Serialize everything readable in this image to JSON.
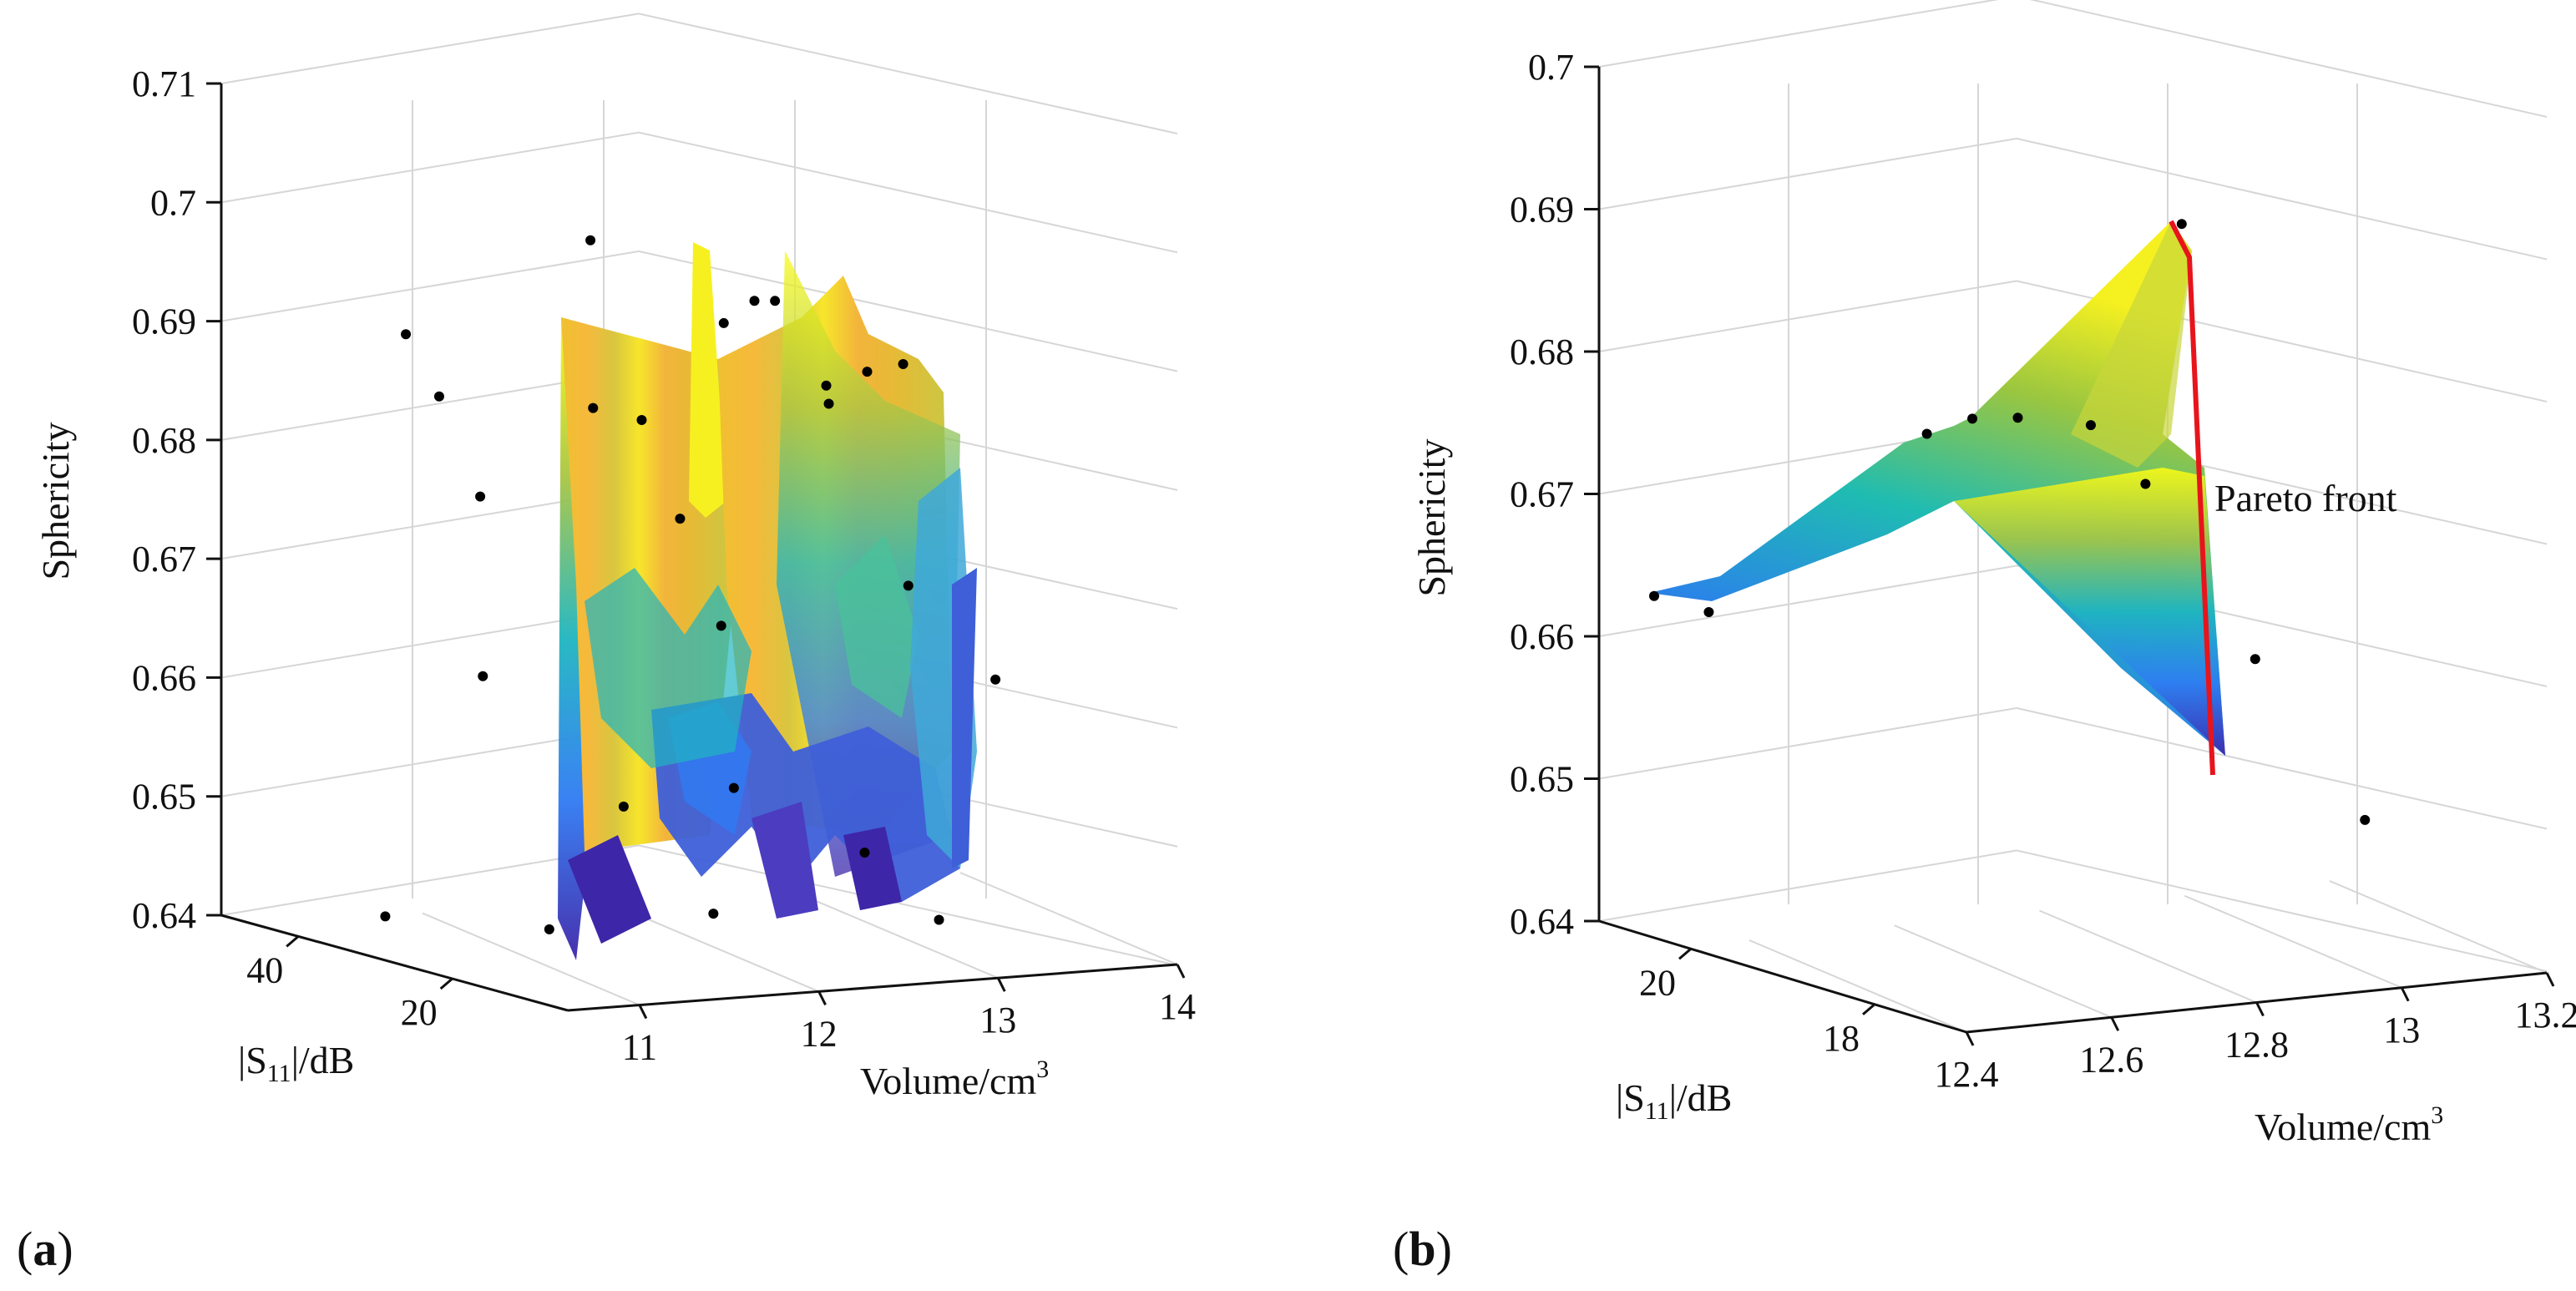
{
  "panels": {
    "a": {
      "label": "(a)",
      "label_letter": "a"
    },
    "b": {
      "label": "(b)",
      "label_letter": "b"
    }
  },
  "chart_data": [
    {
      "id": "a",
      "type": "surface3d-scatter",
      "title": "",
      "zlabel": "Sphericity",
      "xlabel": "Volume/cm³",
      "xlabel_main": "Volume/cm",
      "xlabel_sup": "3",
      "ylabel": "|S11|/dB",
      "ylabel_pre": "|S",
      "ylabel_sub": "11",
      "ylabel_post": "|/dB",
      "z_ticks": [
        "0.71",
        "0.7",
        "0.69",
        "0.68",
        "0.67",
        "0.66",
        "0.65",
        "0.64"
      ],
      "z_range": [
        0.64,
        0.71
      ],
      "x_ticks": [
        "11",
        "12",
        "13",
        "14"
      ],
      "x_range": [
        10.6,
        14
      ],
      "y_ticks": [
        "40",
        "20"
      ],
      "y_range": [
        5,
        50
      ],
      "grid": true,
      "points": [
        {
          "volume": 11.2,
          "s11": 40,
          "sphericity": 0.69
        },
        {
          "volume": 11.3,
          "s11": 38,
          "sphericity": 0.685
        },
        {
          "volume": 11.4,
          "s11": 35,
          "sphericity": 0.677
        },
        {
          "volume": 11.2,
          "s11": 30,
          "sphericity": 0.663
        },
        {
          "volume": 11.6,
          "s11": 25,
          "sphericity": 0.686
        },
        {
          "volume": 11.8,
          "s11": 30,
          "sphericity": 0.699
        },
        {
          "volume": 12.0,
          "s11": 28,
          "sphericity": 0.684
        },
        {
          "volume": 12.2,
          "s11": 22,
          "sphericity": 0.693
        },
        {
          "volume": 12.4,
          "s11": 20,
          "sphericity": 0.695
        },
        {
          "volume": 12.5,
          "s11": 25,
          "sphericity": 0.694
        },
        {
          "volume": 12.6,
          "s11": 18,
          "sphericity": 0.688
        },
        {
          "volume": 12.7,
          "s11": 20,
          "sphericity": 0.686
        },
        {
          "volume": 12.9,
          "s11": 15,
          "sphericity": 0.69
        },
        {
          "volume": 13.0,
          "s11": 22,
          "sphericity": 0.688
        },
        {
          "volume": 12.3,
          "s11": 30,
          "sphericity": 0.675
        },
        {
          "volume": 12.1,
          "s11": 20,
          "sphericity": 0.668
        },
        {
          "volume": 12.8,
          "s11": 12,
          "sphericity": 0.672
        },
        {
          "volume": 13.2,
          "s11": 10,
          "sphericity": 0.664
        },
        {
          "volume": 12.6,
          "s11": 30,
          "sphericity": 0.652
        },
        {
          "volume": 12.2,
          "s11": 35,
          "sphericity": 0.65
        },
        {
          "volume": 12.9,
          "s11": 20,
          "sphericity": 0.648
        },
        {
          "volume": 11.3,
          "s11": 45,
          "sphericity": 0.64
        },
        {
          "volume": 12.0,
          "s11": 40,
          "sphericity": 0.639
        },
        {
          "volume": 12.4,
          "s11": 28,
          "sphericity": 0.642
        },
        {
          "volume": 13.1,
          "s11": 15,
          "sphericity": 0.643
        }
      ]
    },
    {
      "id": "b",
      "type": "surface3d-scatter",
      "title": "",
      "zlabel": "Sphericity",
      "xlabel": "Volume/cm³",
      "xlabel_main": "Volume/cm",
      "xlabel_sup": "3",
      "ylabel": "|S11|/dB",
      "ylabel_pre": "|S",
      "ylabel_sub": "11",
      "ylabel_post": "|/dB",
      "z_ticks": [
        "0.7",
        "0.69",
        "0.68",
        "0.67",
        "0.66",
        "0.65",
        "0.64"
      ],
      "z_range": [
        0.64,
        0.7
      ],
      "x_ticks": [
        "12.4",
        "12.6",
        "12.8",
        "13",
        "13.2"
      ],
      "x_range": [
        12.4,
        13.2
      ],
      "y_ticks": [
        "20",
        "18"
      ],
      "y_range": [
        17,
        21
      ],
      "grid": true,
      "annotation": "Pareto front",
      "pareto_front": [
        {
          "volume": 12.95,
          "s11": 19.0,
          "sphericity": 0.69
        },
        {
          "volume": 12.98,
          "s11": 18.6,
          "sphericity": 0.687
        },
        {
          "volume": 13.0,
          "s11": 17.4,
          "sphericity": 0.651
        }
      ],
      "points": [
        {
          "volume": 12.4,
          "s11": 20.4,
          "sphericity": 0.664
        },
        {
          "volume": 12.45,
          "s11": 20.2,
          "sphericity": 0.663
        },
        {
          "volume": 12.7,
          "s11": 19.8,
          "sphericity": 0.675
        },
        {
          "volume": 12.75,
          "s11": 19.7,
          "sphericity": 0.676
        },
        {
          "volume": 12.8,
          "s11": 19.6,
          "sphericity": 0.676
        },
        {
          "volume": 12.85,
          "s11": 19.2,
          "sphericity": 0.676
        },
        {
          "volume": 12.9,
          "s11": 19.0,
          "sphericity": 0.672
        },
        {
          "volume": 12.95,
          "s11": 18.2,
          "sphericity": 0.661
        },
        {
          "volume": 12.95,
          "s11": 19.0,
          "sphericity": 0.69
        },
        {
          "volume": 13.0,
          "s11": 17.4,
          "sphericity": 0.651
        }
      ]
    }
  ]
}
